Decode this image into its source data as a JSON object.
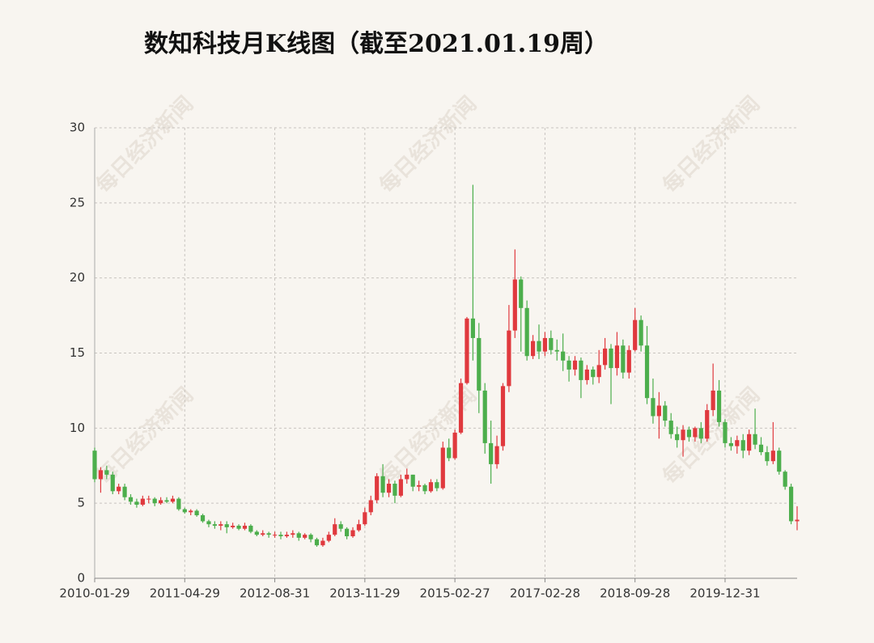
{
  "chart_data": {
    "type": "candlestick",
    "title": "数知科技月K线图（截至2021.01.19周）",
    "watermark": "每日经济新闻",
    "up_color": "#e0393e",
    "down_color": "#4cae4c",
    "ylim": [
      0,
      30
    ],
    "yticks": [
      0,
      5,
      10,
      15,
      20,
      25,
      30
    ],
    "grid": true,
    "categories": [
      "2010-01-29",
      null,
      null,
      null,
      null,
      null,
      null,
      null,
      null,
      null,
      null,
      null,
      null,
      null,
      null,
      "2011-04-29",
      null,
      null,
      null,
      null,
      null,
      null,
      null,
      null,
      null,
      null,
      null,
      null,
      null,
      null,
      "2012-08-31",
      null,
      null,
      null,
      null,
      null,
      null,
      null,
      null,
      null,
      null,
      null,
      null,
      null,
      null,
      "2013-11-29",
      null,
      null,
      null,
      null,
      null,
      null,
      null,
      null,
      null,
      null,
      null,
      null,
      null,
      null,
      "2015-02-27",
      null,
      null,
      null,
      null,
      null,
      null,
      null,
      null,
      null,
      null,
      null,
      null,
      null,
      null,
      "2017-02-28",
      null,
      null,
      null,
      null,
      null,
      null,
      null,
      null,
      null,
      null,
      null,
      null,
      null,
      null,
      "2018-09-28",
      null,
      null,
      null,
      null,
      null,
      null,
      null,
      null,
      null,
      null,
      null,
      null,
      null,
      null,
      "2019-12-31",
      null,
      null,
      null,
      null,
      null,
      null,
      null,
      null,
      null,
      null,
      null,
      null
    ],
    "open": [
      8.5,
      6.6,
      7.2,
      6.9,
      5.8,
      6.1,
      5.4,
      5.1,
      4.9,
      5.3,
      5.3,
      5.0,
      5.2,
      5.1,
      5.3,
      4.6,
      4.4,
      4.5,
      4.2,
      3.8,
      3.6,
      3.5,
      3.6,
      3.4,
      3.5,
      3.3,
      3.5,
      3.1,
      2.9,
      3.0,
      2.9,
      2.9,
      2.8,
      2.9,
      3.0,
      2.7,
      2.9,
      2.6,
      2.2,
      2.5,
      2.9,
      3.6,
      3.3,
      2.8,
      3.2,
      3.6,
      4.4,
      5.2,
      6.8,
      5.7,
      6.3,
      5.5,
      6.6,
      6.9,
      6.1,
      6.2,
      5.8,
      6.4,
      6.0,
      8.7,
      8.0,
      9.7,
      13.0,
      17.3,
      16.0,
      12.5,
      9.0,
      7.6,
      8.8,
      12.8,
      16.5,
      19.9,
      18.0,
      14.8,
      15.8,
      15.1,
      16.0,
      15.2,
      15.1,
      14.5,
      13.9,
      14.5,
      13.2,
      13.9,
      13.4,
      14.2,
      15.3,
      14.0,
      15.5,
      13.7,
      15.2,
      17.2,
      15.5,
      12.0,
      10.8,
      11.5,
      10.5,
      9.6,
      9.2,
      9.9,
      9.4,
      10.0,
      9.3,
      11.2,
      12.5,
      10.4,
      9.0,
      8.8,
      9.2,
      8.5,
      9.6,
      8.9,
      8.4,
      7.8,
      8.5,
      7.1,
      6.1,
      3.8
    ],
    "high": [
      8.7,
      7.4,
      7.5,
      7.1,
      6.3,
      6.3,
      5.6,
      5.3,
      5.5,
      5.5,
      5.4,
      5.4,
      5.4,
      5.5,
      5.4,
      4.7,
      4.6,
      4.6,
      4.3,
      3.9,
      3.8,
      3.8,
      3.8,
      3.7,
      3.6,
      3.7,
      3.6,
      3.2,
      3.2,
      3.1,
      3.1,
      3.1,
      3.1,
      3.2,
      3.1,
      3.0,
      3.0,
      2.7,
      2.7,
      3.1,
      4.0,
      3.8,
      3.4,
      3.4,
      3.9,
      4.7,
      5.5,
      7.0,
      7.6,
      6.6,
      6.5,
      6.9,
      7.3,
      6.9,
      6.5,
      6.3,
      6.6,
      6.6,
      9.1,
      9.3,
      9.9,
      13.3,
      17.4,
      26.2,
      17.0,
      13.0,
      10.5,
      9.5,
      13.0,
      18.2,
      21.9,
      20.1,
      18.5,
      16.2,
      16.9,
      16.4,
      16.5,
      15.9,
      16.3,
      14.8,
      14.8,
      14.7,
      14.2,
      14.1,
      15.2,
      16.0,
      15.6,
      16.4,
      15.9,
      15.5,
      18.0,
      17.5,
      16.8,
      13.3,
      12.4,
      11.8,
      11.0,
      10.1,
      10.2,
      10.1,
      10.1,
      10.4,
      11.6,
      14.3,
      13.2,
      10.6,
      9.4,
      9.5,
      9.6,
      9.9,
      11.3,
      9.4,
      8.8,
      10.4,
      8.7,
      7.2,
      6.3,
      4.8
    ],
    "low": [
      6.4,
      5.7,
      6.6,
      5.6,
      5.6,
      5.2,
      4.9,
      4.7,
      4.8,
      5.0,
      4.8,
      4.9,
      5.0,
      5.0,
      4.5,
      4.3,
      4.2,
      4.1,
      3.7,
      3.4,
      3.3,
      3.2,
      3.0,
      3.3,
      3.2,
      3.2,
      3.0,
      2.8,
      2.8,
      2.7,
      2.7,
      2.6,
      2.7,
      2.7,
      2.5,
      2.6,
      2.4,
      2.1,
      2.1,
      2.4,
      2.8,
      3.1,
      2.6,
      2.7,
      3.1,
      3.5,
      4.2,
      5.0,
      5.4,
      5.4,
      5.0,
      5.4,
      6.3,
      5.8,
      5.8,
      5.6,
      5.7,
      5.8,
      5.9,
      7.8,
      7.9,
      9.6,
      12.9,
      14.5,
      11.0,
      8.3,
      6.3,
      7.3,
      8.5,
      12.4,
      16.0,
      15.1,
      14.5,
      14.6,
      14.6,
      14.8,
      14.9,
      14.5,
      13.8,
      13.1,
      13.5,
      12.0,
      12.9,
      12.9,
      13.0,
      13.9,
      11.6,
      13.5,
      13.3,
      13.3,
      15.1,
      15.1,
      11.6,
      10.3,
      9.3,
      10.1,
      9.3,
      8.7,
      8.1,
      9.1,
      9.1,
      9.0,
      9.1,
      10.8,
      10.1,
      8.7,
      8.5,
      8.3,
      8.0,
      8.2,
      8.6,
      8.2,
      7.5,
      7.6,
      6.9,
      5.9,
      3.6,
      3.2
    ],
    "close": [
      6.6,
      7.2,
      6.9,
      5.8,
      6.1,
      5.4,
      5.1,
      4.9,
      5.3,
      5.3,
      5.0,
      5.2,
      5.1,
      5.3,
      4.6,
      4.4,
      4.5,
      4.2,
      3.8,
      3.6,
      3.5,
      3.6,
      3.4,
      3.5,
      3.3,
      3.5,
      3.1,
      2.9,
      3.0,
      2.9,
      2.9,
      2.8,
      2.9,
      3.0,
      2.7,
      2.9,
      2.6,
      2.2,
      2.5,
      2.9,
      3.6,
      3.3,
      2.8,
      3.2,
      3.6,
      4.4,
      5.2,
      6.8,
      5.7,
      6.3,
      5.5,
      6.6,
      6.9,
      6.1,
      6.2,
      5.8,
      6.4,
      6.0,
      8.7,
      8.0,
      9.7,
      13.0,
      17.3,
      16.0,
      12.5,
      9.0,
      7.6,
      8.8,
      12.8,
      16.5,
      19.9,
      18.0,
      14.8,
      15.8,
      15.1,
      16.0,
      15.2,
      15.1,
      14.5,
      13.9,
      14.5,
      13.2,
      13.9,
      13.4,
      14.2,
      15.3,
      14.0,
      15.5,
      13.7,
      15.2,
      17.2,
      15.5,
      12.0,
      10.8,
      11.5,
      10.5,
      9.6,
      9.2,
      9.9,
      9.4,
      10.0,
      9.3,
      11.2,
      12.5,
      10.4,
      9.0,
      8.8,
      9.2,
      8.5,
      9.6,
      8.9,
      8.4,
      7.8,
      8.5,
      7.1,
      6.1,
      3.8,
      3.9
    ]
  }
}
